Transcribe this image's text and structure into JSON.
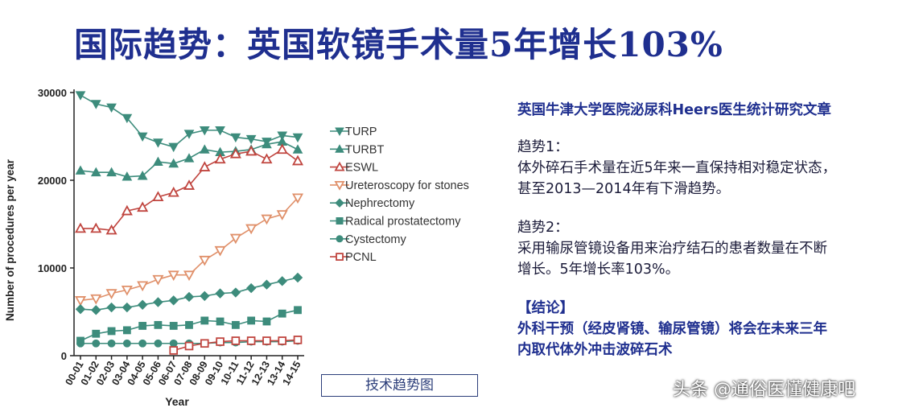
{
  "title": "国际趋势：英国软镜手术量5年增长103%",
  "caption": "技术趋势图",
  "notes": {
    "heading": "英国牛津大学医院泌尿科Heers医生统计研究文章",
    "trend1_label": "趋势1：",
    "trend1_line1": "体外碎石手术量在近5年来一直保持相对稳定状态，",
    "trend1_line2": "甚至2013—2014年有下滑趋势。",
    "trend2_label": "趋势2：",
    "trend2_line1": "采用输尿管镜设备用来治疗结石的患者数量在不断",
    "trend2_line2": "增长。5年增长率103%。",
    "conclusion_label": "【结论】",
    "conclusion_line1": "外科干预（经皮肾镜、输尿管镜）将会在未来三年",
    "conclusion_line2": "内取代体外冲击波碎石术"
  },
  "watermark": "头条 @通俗医懂健康吧",
  "chart_data": {
    "type": "line",
    "xlabel": "Year",
    "ylabel": "Number of procedures per year",
    "ylim": [
      0,
      30000
    ],
    "yticks": [
      0,
      10000,
      20000,
      30000
    ],
    "categories": [
      "00-01",
      "01-02",
      "02-03",
      "03-04",
      "04-05",
      "05-06",
      "06-07",
      "07-08",
      "08-09",
      "09-10",
      "10-11",
      "11-12",
      "12-13",
      "13-14",
      "14-15"
    ],
    "series": [
      {
        "name": "TURP",
        "color": "#3d8c7c",
        "marker": "tri-down",
        "values": [
          29700,
          28700,
          28300,
          27100,
          25000,
          24300,
          23800,
          25300,
          25700,
          25700,
          24900,
          24700,
          24400,
          25100,
          24900
        ]
      },
      {
        "name": "TURBT",
        "color": "#3d8c7c",
        "marker": "tri-up",
        "values": [
          21100,
          20900,
          20900,
          20400,
          20500,
          22100,
          21900,
          22500,
          23500,
          23200,
          23300,
          23500,
          24100,
          24400,
          23500
        ]
      },
      {
        "name": "ESWL",
        "color": "#c0453f",
        "marker": "tri-up-open",
        "values": [
          14500,
          14500,
          14300,
          16500,
          16900,
          18100,
          18600,
          19400,
          21500,
          22400,
          23000,
          23300,
          22400,
          23500,
          22200
        ]
      },
      {
        "name": "Ureteroscopy for stones",
        "color": "#e0906a",
        "marker": "tri-down-open",
        "values": [
          6300,
          6500,
          7100,
          7500,
          8000,
          8700,
          9200,
          9200,
          10900,
          12000,
          13400,
          14500,
          15600,
          16100,
          18000
        ]
      },
      {
        "name": "Nephrectomy",
        "color": "#3d8c7c",
        "marker": "diamond",
        "values": [
          5300,
          5200,
          5500,
          5500,
          5800,
          6100,
          6300,
          6700,
          6800,
          7100,
          7200,
          7700,
          8100,
          8500,
          8900
        ]
      },
      {
        "name": "Radical prostatectomy",
        "color": "#3d8c7c",
        "marker": "square",
        "values": [
          1700,
          2500,
          2800,
          2900,
          3400,
          3500,
          3400,
          3500,
          4000,
          3900,
          3500,
          4000,
          3900,
          4800,
          5200
        ]
      },
      {
        "name": "Cystectomy",
        "color": "#3d8c7c",
        "marker": "circle",
        "values": [
          1400,
          1400,
          1400,
          1400,
          1400,
          1400,
          1400,
          1400,
          1400,
          1500,
          1500,
          1600,
          1600,
          1600,
          1700
        ]
      },
      {
        "name": "PCNL",
        "color": "#c0453f",
        "marker": "square-open",
        "values": [
          null,
          null,
          null,
          null,
          null,
          null,
          600,
          1100,
          1400,
          1600,
          1700,
          1700,
          1700,
          1700,
          1800
        ]
      }
    ]
  }
}
